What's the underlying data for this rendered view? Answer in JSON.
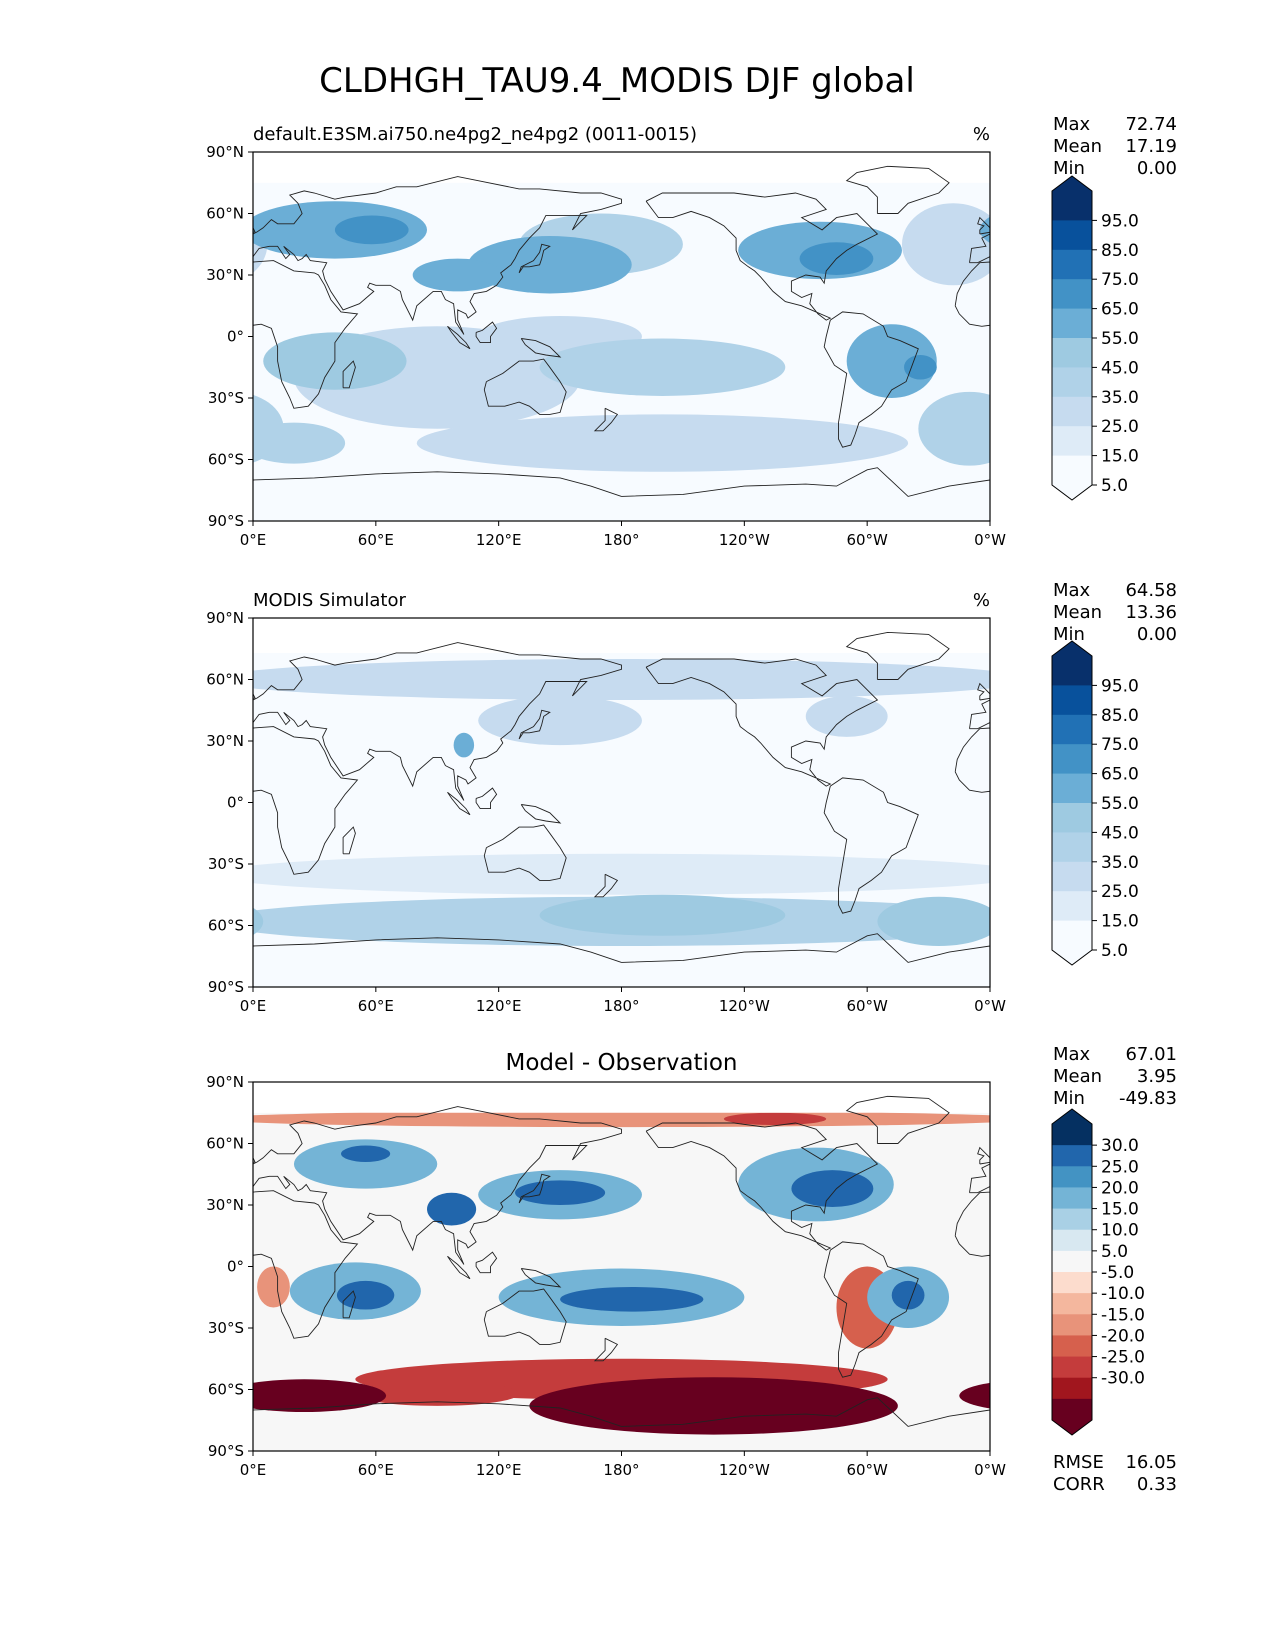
{
  "figure": {
    "title": "CLDHGH_TAU9.4_MODIS DJF global"
  },
  "colors": {
    "seq": [
      "#f7fbff",
      "#deebf7",
      "#c6dbef",
      "#b0d2e8",
      "#9ecae1",
      "#6baed6",
      "#4292c6",
      "#2171b5",
      "#08519c",
      "#08306b"
    ],
    "div": [
      "#67001f",
      "#a1161e",
      "#c43c3c",
      "#d6604d",
      "#e8937a",
      "#f4b79e",
      "#fcdccd",
      "#f7f7f7",
      "#d8e8f1",
      "#a9d0e5",
      "#74b4d6",
      "#4393c3",
      "#2166ac",
      "#053061"
    ]
  },
  "chart_data": [
    {
      "type": "heatmap",
      "title_left": "default.E3SM.ai750.ne4pg2_ne4pg2 (0011-0015)",
      "title_center": "",
      "units": "%",
      "xticks": [
        "0°E",
        "60°E",
        "120°E",
        "180°",
        "120°W",
        "60°W",
        "0°W"
      ],
      "yticks": [
        "90°N",
        "60°N",
        "30°N",
        "0°",
        "30°S",
        "60°S",
        "90°S"
      ],
      "xlim": [
        0,
        360
      ],
      "ylim": [
        -90,
        90
      ],
      "stats": [
        {
          "label": "Max",
          "value": "72.74"
        },
        {
          "label": "Mean",
          "value": "17.19"
        },
        {
          "label": "Min",
          "value": "0.00"
        }
      ],
      "colorbar": {
        "extend": "both",
        "levels": [
          "95.0",
          "85.0",
          "75.0",
          "65.0",
          "55.0",
          "45.0",
          "35.0",
          "25.0",
          "15.0",
          "5.0"
        ]
      },
      "extra_stats": [],
      "blobs": [
        {
          "lon": 40,
          "lat": 52,
          "rx": 45,
          "ry": 14,
          "v": 48
        },
        {
          "lon": 58,
          "lat": 52,
          "rx": 18,
          "ry": 7,
          "v": 58
        },
        {
          "lon": 100,
          "lat": 30,
          "rx": 22,
          "ry": 8,
          "v": 52
        },
        {
          "lon": 145,
          "lat": 35,
          "rx": 40,
          "ry": 14,
          "v": 48
        },
        {
          "lon": 170,
          "lat": 45,
          "rx": 40,
          "ry": 15,
          "v": 32
        },
        {
          "lon": 277,
          "lat": 42,
          "rx": 40,
          "ry": 14,
          "v": 48
        },
        {
          "lon": 285,
          "lat": 38,
          "rx": 18,
          "ry": 8,
          "v": 58
        },
        {
          "lon": 342,
          "lat": 45,
          "rx": 25,
          "ry": 20,
          "v": 22
        },
        {
          "lon": 40,
          "lat": -12,
          "rx": 35,
          "ry": 14,
          "v": 42
        },
        {
          "lon": 90,
          "lat": -20,
          "rx": 70,
          "ry": 25,
          "v": 20
        },
        {
          "lon": 200,
          "lat": -15,
          "rx": 60,
          "ry": 14,
          "v": 28
        },
        {
          "lon": 312,
          "lat": -12,
          "rx": 22,
          "ry": 18,
          "v": 45
        },
        {
          "lon": 326,
          "lat": -15,
          "rx": 8,
          "ry": 6,
          "v": 62
        },
        {
          "lon": 200,
          "lat": -52,
          "rx": 120,
          "ry": 14,
          "v": 22
        },
        {
          "lon": 20,
          "lat": -52,
          "rx": 25,
          "ry": 10,
          "v": 30
        },
        {
          "lon": 350,
          "lat": -45,
          "rx": 25,
          "ry": 18,
          "v": 32
        },
        {
          "lon": 150,
          "lat": 0,
          "rx": 40,
          "ry": 10,
          "v": 18
        }
      ]
    },
    {
      "type": "heatmap",
      "title_left": "MODIS Simulator",
      "title_center": "",
      "units": "%",
      "xticks": [
        "0°E",
        "60°E",
        "120°E",
        "180°",
        "120°W",
        "60°W",
        "0°W"
      ],
      "yticks": [
        "90°N",
        "60°N",
        "30°N",
        "0°",
        "30°S",
        "60°S",
        "90°S"
      ],
      "xlim": [
        0,
        360
      ],
      "ylim": [
        -90,
        90
      ],
      "stats": [
        {
          "label": "Max",
          "value": "64.58"
        },
        {
          "label": "Mean",
          "value": "13.36"
        },
        {
          "label": "Min",
          "value": "0.00"
        }
      ],
      "colorbar": {
        "extend": "both",
        "levels": [
          "95.0",
          "85.0",
          "75.0",
          "65.0",
          "55.0",
          "45.0",
          "35.0",
          "25.0",
          "15.0",
          "5.0"
        ]
      },
      "extra_stats": [],
      "blobs": [
        {
          "lon": 180,
          "lat": -58,
          "rx": 200,
          "ry": 12,
          "v": 32
        },
        {
          "lon": 200,
          "lat": -55,
          "rx": 60,
          "ry": 10,
          "v": 42
        },
        {
          "lon": 335,
          "lat": -58,
          "rx": 30,
          "ry": 12,
          "v": 42
        },
        {
          "lon": 180,
          "lat": 60,
          "rx": 200,
          "ry": 10,
          "v": 20
        },
        {
          "lon": 103,
          "lat": 28,
          "rx": 5,
          "ry": 6,
          "v": 50
        },
        {
          "lon": 150,
          "lat": 40,
          "rx": 40,
          "ry": 12,
          "v": 20
        },
        {
          "lon": 290,
          "lat": 42,
          "rx": 20,
          "ry": 10,
          "v": 20
        },
        {
          "lon": 180,
          "lat": -35,
          "rx": 200,
          "ry": 10,
          "v": 12
        }
      ]
    },
    {
      "type": "heatmap",
      "title_left": "",
      "title_center": "Model - Observation",
      "units": "",
      "xticks": [
        "0°E",
        "60°E",
        "120°E",
        "180°",
        "120°W",
        "60°W",
        "0°W"
      ],
      "yticks": [
        "90°N",
        "60°N",
        "30°N",
        "0°",
        "30°S",
        "60°S",
        "90°S"
      ],
      "xlim": [
        0,
        360
      ],
      "ylim": [
        -90,
        90
      ],
      "stats": [
        {
          "label": "Max",
          "value": "67.01"
        },
        {
          "label": "Mean",
          "value": "3.95"
        },
        {
          "label": "Min",
          "value": "-49.83"
        }
      ],
      "colorbar": {
        "extend": "both",
        "levels": [
          "30.0",
          "25.0",
          "20.0",
          "15.0",
          "10.0",
          "5.0",
          "-5.0",
          "-10.0",
          "-15.0",
          "-20.0",
          "-25.0",
          "-30.0"
        ]
      },
      "extra_stats": [
        {
          "label": "RMSE",
          "value": "16.05"
        },
        {
          "label": "CORR",
          "value": "0.33"
        }
      ],
      "blobs": [
        {
          "lon": 55,
          "lat": 50,
          "rx": 35,
          "ry": 12,
          "v": 22
        },
        {
          "lon": 55,
          "lat": 55,
          "rx": 12,
          "ry": 4,
          "v": 32
        },
        {
          "lon": 97,
          "lat": 28,
          "rx": 12,
          "ry": 8,
          "v": 32
        },
        {
          "lon": 150,
          "lat": 35,
          "rx": 40,
          "ry": 12,
          "v": 22
        },
        {
          "lon": 150,
          "lat": 36,
          "rx": 22,
          "ry": 6,
          "v": 32
        },
        {
          "lon": 275,
          "lat": 40,
          "rx": 38,
          "ry": 18,
          "v": 25
        },
        {
          "lon": 283,
          "lat": 38,
          "rx": 20,
          "ry": 9,
          "v": 33
        },
        {
          "lon": 50,
          "lat": -12,
          "rx": 32,
          "ry": 14,
          "v": 25
        },
        {
          "lon": 55,
          "lat": -14,
          "rx": 14,
          "ry": 7,
          "v": 33
        },
        {
          "lon": 180,
          "lat": -15,
          "rx": 60,
          "ry": 14,
          "v": 22
        },
        {
          "lon": 185,
          "lat": -16,
          "rx": 35,
          "ry": 6,
          "v": 32
        },
        {
          "lon": 320,
          "lat": -15,
          "rx": 20,
          "ry": 15,
          "v": 22
        },
        {
          "lon": 320,
          "lat": -14,
          "rx": 8,
          "ry": 7,
          "v": 32
        },
        {
          "lon": 25,
          "lat": -63,
          "rx": 40,
          "ry": 8,
          "v": -32
        },
        {
          "lon": 90,
          "lat": -62,
          "rx": 40,
          "ry": 6,
          "v": -24
        },
        {
          "lon": 225,
          "lat": -68,
          "rx": 90,
          "ry": 14,
          "v": -32
        },
        {
          "lon": 180,
          "lat": -55,
          "rx": 130,
          "ry": 10,
          "v": -20
        },
        {
          "lon": 300,
          "lat": -20,
          "rx": 15,
          "ry": 20,
          "v": -17
        },
        {
          "lon": 180,
          "lat": 72,
          "rx": 200,
          "ry": 4,
          "v": -12
        },
        {
          "lon": 255,
          "lat": 72,
          "rx": 25,
          "ry": 3,
          "v": -22
        },
        {
          "lon": 10,
          "lat": -10,
          "rx": 8,
          "ry": 10,
          "v": -12
        }
      ]
    }
  ]
}
